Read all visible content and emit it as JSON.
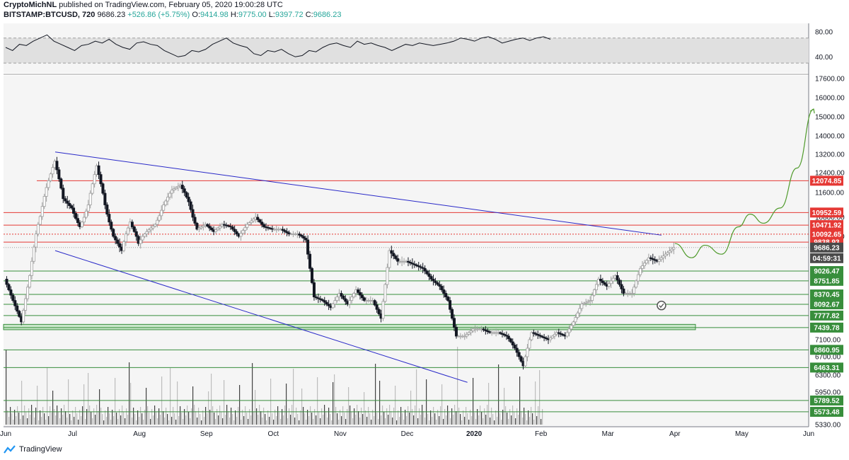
{
  "header": {
    "author": "CryptoMichNL",
    "published_text": "published on TradingView.com, February 05, 2020 19:00:28 UTC",
    "symbol": "BITSTAMP:BTCUSD, 720",
    "last": "9686.23",
    "change": "+526.86 (+5.75%)",
    "o_label": "O:",
    "o_value": "9414.98",
    "h_label": "H:",
    "h_value": "9775.00",
    "l_label": "L:",
    "l_value": "9397.72",
    "c_label": "C:",
    "c_value": "9686.23"
  },
  "footer": {
    "brand": "TradingView"
  },
  "colors": {
    "up": "#26a69a",
    "down": "#131722",
    "channel": "#2929c8",
    "resistance": "#e53935",
    "support": "#388e3c",
    "projection": "#4e9a2a",
    "zone_fill": "#c8e6c9",
    "rsi": "#131722"
  },
  "chart_data": {
    "type": "candlestick",
    "symbol": "BITSTAMP:BTCUSD",
    "interval": "720",
    "y_axis_labels": [
      "17600.00",
      "16000.00",
      "15000.00",
      "14000.00",
      "13200.00",
      "12400.00",
      "11600.00",
      "10800.00",
      "10000.00",
      "7100.00",
      "6700.00",
      "6300.00",
      "5950.00",
      "5330.00"
    ],
    "x_axis_labels": [
      "Jun",
      "Jul",
      "Aug",
      "Sep",
      "Oct",
      "Nov",
      "Dec",
      "2020",
      "Feb",
      "Mar",
      "Apr",
      "May",
      "Jun"
    ],
    "resistance_levels": [
      "12074.85",
      "10952.59",
      "10471.92",
      "10092.65",
      "9838.93"
    ],
    "support_levels": [
      "9026.47",
      "8751.85",
      "8370.45",
      "8092.67",
      "7777.82",
      "7439.78",
      "6860.95",
      "6463.31",
      "5789.52",
      "5573.48"
    ],
    "current_price": "9686.23",
    "countdown": "04:59:31",
    "rsi": {
      "labels": [
        "80.00",
        "40.00"
      ],
      "upper": 70,
      "lower": 30
    },
    "price_path": [
      [
        0,
        8800
      ],
      [
        0.5,
        8200
      ],
      [
        1,
        7600
      ],
      [
        1.5,
        8900
      ],
      [
        2,
        10500
      ],
      [
        2.5,
        11800
      ],
      [
        3,
        12900
      ],
      [
        3.5,
        11400
      ],
      [
        4,
        11100
      ],
      [
        4.5,
        10400
      ],
      [
        5,
        11200
      ],
      [
        5.5,
        12700
      ],
      [
        6,
        11200
      ],
      [
        6.5,
        10000
      ],
      [
        7,
        9600
      ],
      [
        7.5,
        10600
      ],
      [
        8,
        9800
      ],
      [
        8.5,
        10200
      ],
      [
        9,
        10500
      ],
      [
        9.5,
        11200
      ],
      [
        10,
        11700
      ],
      [
        10.5,
        11900
      ],
      [
        11,
        11300
      ],
      [
        11.5,
        10300
      ],
      [
        12,
        10500
      ],
      [
        12.5,
        10200
      ],
      [
        13,
        10500
      ],
      [
        13.5,
        10400
      ],
      [
        14,
        10000
      ],
      [
        14.5,
        10500
      ],
      [
        15,
        10800
      ],
      [
        15.5,
        10400
      ],
      [
        16,
        10300
      ],
      [
        16.5,
        10300
      ],
      [
        17,
        10100
      ],
      [
        17.5,
        10100
      ],
      [
        18,
        9900
      ],
      [
        18.5,
        8300
      ],
      [
        19,
        8200
      ],
      [
        19.5,
        8000
      ],
      [
        20,
        8400
      ],
      [
        20.5,
        8100
      ],
      [
        21,
        8500
      ],
      [
        21.5,
        8200
      ],
      [
        22,
        8200
      ],
      [
        22.5,
        7700
      ],
      [
        23,
        9600
      ],
      [
        23.5,
        9300
      ],
      [
        24,
        9300
      ],
      [
        24.5,
        9200
      ],
      [
        25,
        9100
      ],
      [
        25.5,
        8800
      ],
      [
        26,
        8600
      ],
      [
        26.5,
        8200
      ],
      [
        27,
        7200
      ],
      [
        27.5,
        7200
      ],
      [
        28,
        7400
      ],
      [
        28.5,
        7400
      ],
      [
        29,
        7300
      ],
      [
        29.5,
        7300
      ],
      [
        30,
        7200
      ],
      [
        30.5,
        6900
      ],
      [
        31,
        6500
      ],
      [
        31.5,
        7300
      ],
      [
        32,
        7200
      ],
      [
        32.5,
        7100
      ],
      [
        33,
        7300
      ],
      [
        33.5,
        7200
      ],
      [
        34,
        7600
      ],
      [
        34.5,
        8100
      ],
      [
        35,
        8200
      ],
      [
        35.5,
        8800
      ],
      [
        36,
        8600
      ],
      [
        36.5,
        8900
      ],
      [
        37,
        8400
      ],
      [
        37.5,
        8400
      ],
      [
        38,
        9100
      ],
      [
        38.5,
        9400
      ],
      [
        39,
        9300
      ],
      [
        39.5,
        9500
      ],
      [
        40,
        9686
      ]
    ],
    "channel": {
      "upper": [
        [
          0,
          13300
        ],
        [
          9.8,
          10050
        ]
      ],
      "lower": [
        [
          0,
          9600
        ],
        [
          6.9,
          6150
        ]
      ]
    },
    "projection": [
      [
        40,
        9800
      ],
      [
        41,
        9400
      ],
      [
        41.8,
        9750
      ],
      [
        42.8,
        9500
      ],
      [
        43.8,
        10400
      ],
      [
        44.5,
        10900
      ],
      [
        45.3,
        10550
      ],
      [
        46.3,
        11100
      ],
      [
        47.3,
        12600
      ],
      [
        48.3,
        15400
      ]
    ],
    "rsi_path": [
      55,
      50,
      60,
      58,
      65,
      70,
      75,
      65,
      60,
      55,
      50,
      58,
      60,
      65,
      62,
      68,
      60,
      55,
      52,
      62,
      64,
      60,
      58,
      50,
      45,
      40,
      42,
      50,
      48,
      52,
      60,
      65,
      70,
      62,
      58,
      55,
      45,
      42,
      50,
      48,
      52,
      45,
      40,
      42,
      50,
      48,
      55,
      60,
      62,
      58,
      55,
      65,
      60,
      62,
      58,
      55,
      50,
      55,
      60,
      58,
      62,
      60,
      58,
      60,
      62,
      65,
      70,
      68,
      65,
      70,
      72,
      68,
      62,
      65,
      68,
      70,
      66,
      70,
      72,
      68
    ]
  }
}
